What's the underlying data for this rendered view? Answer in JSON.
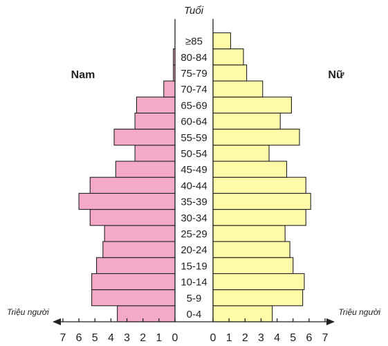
{
  "chart_data": {
    "type": "bar",
    "orientation": "horizontal-population-pyramid",
    "y_axis_title": "Tuổi",
    "x_unit_label": "Triệu người",
    "categories": [
      "0-4",
      "5-9",
      "10-14",
      "15-19",
      "20-24",
      "25-29",
      "30-34",
      "35-39",
      "40-44",
      "45-49",
      "50-54",
      "55-59",
      "60-64",
      "65-69",
      "70-74",
      "75-79",
      "80-84",
      "≥85"
    ],
    "series": [
      {
        "name": "Nam",
        "color": "#f4a9c8",
        "values": [
          3.6,
          5.2,
          5.2,
          4.9,
          4.5,
          4.4,
          5.3,
          6.0,
          5.3,
          3.7,
          2.5,
          3.8,
          2.5,
          2.4,
          0.7,
          0.1,
          0.1,
          0.0
        ]
      },
      {
        "name": "Nữ",
        "color": "#fffaa8",
        "values": [
          3.7,
          5.6,
          5.7,
          5.0,
          4.8,
          4.5,
          5.8,
          6.1,
          5.8,
          4.6,
          3.5,
          5.4,
          4.2,
          4.9,
          3.1,
          2.1,
          1.9,
          1.1
        ]
      }
    ],
    "left_ticks": [
      7,
      6,
      5,
      4,
      3,
      2,
      1,
      0
    ],
    "right_ticks": [
      0,
      1,
      2,
      3,
      4,
      5,
      6,
      7
    ],
    "xlim": [
      0,
      7
    ]
  }
}
